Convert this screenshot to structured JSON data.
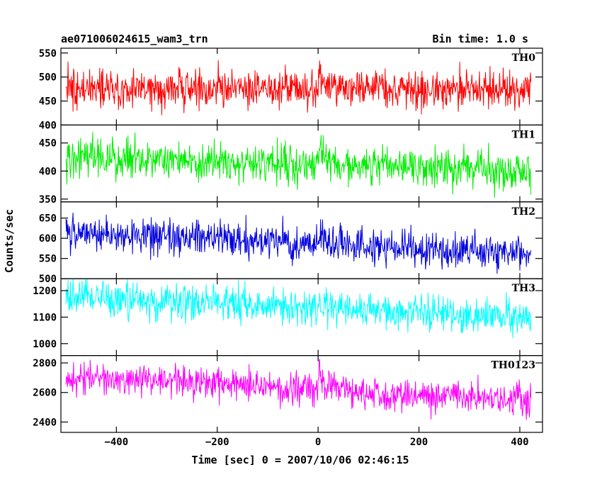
{
  "header": {
    "title": "ae071006024615_wam3_trn",
    "bin_time": "Bin time: 1.0 s"
  },
  "chart_data": {
    "type": "line",
    "title": "ae071006024615_wam3_trn",
    "subtitle": "Bin time: 1.0 s",
    "xlabel": "Time [sec] 0 = 2007/10/06 02:46:15",
    "ylabel": "Counts/sec",
    "xlim": [
      -510,
      445
    ],
    "x_range": [
      -500,
      422
    ],
    "x_ticks": [
      -400,
      -200,
      0,
      200,
      400
    ],
    "x_tick_labels": [
      "−400",
      "−200",
      "0",
      "200",
      "400"
    ],
    "grid": false,
    "panels": [
      {
        "name": "TH0",
        "color": "#ff0000",
        "ylim": [
          400,
          560
        ],
        "y_ticks": [
          400,
          450,
          500,
          550
        ],
        "mean_start": 480,
        "mean_end": 470,
        "noise": 20,
        "burst_at": 0,
        "burst_peak": 510
      },
      {
        "name": "TH1",
        "color": "#00ee00",
        "ylim": [
          345,
          482
        ],
        "y_ticks": [
          350,
          400,
          450
        ],
        "mean_start": 425,
        "mean_end": 400,
        "noise": 18,
        "burst_at": 0,
        "burst_peak": 440
      },
      {
        "name": "TH2",
        "color": "#0000dd",
        "ylim": [
          500,
          690
        ],
        "y_ticks": [
          500,
          550,
          600,
          650
        ],
        "mean_start": 615,
        "mean_end": 560,
        "noise": 22,
        "burst_at": 0,
        "burst_peak": 610
      },
      {
        "name": "TH3",
        "color": "#00ffff",
        "ylim": [
          955,
          1245
        ],
        "y_ticks": [
          1000,
          1100,
          1200
        ],
        "mean_start": 1175,
        "mean_end": 1100,
        "noise": 35,
        "burst_at": 0,
        "burst_peak": 1150
      },
      {
        "name": "TH0123",
        "color": "#ff00ff",
        "ylim": [
          2330,
          2850
        ],
        "y_ticks": [
          2400,
          2600,
          2800
        ],
        "mean_start": 2710,
        "mean_end": 2540,
        "noise": 55,
        "burst_at": 0,
        "burst_peak": 2740
      }
    ]
  }
}
